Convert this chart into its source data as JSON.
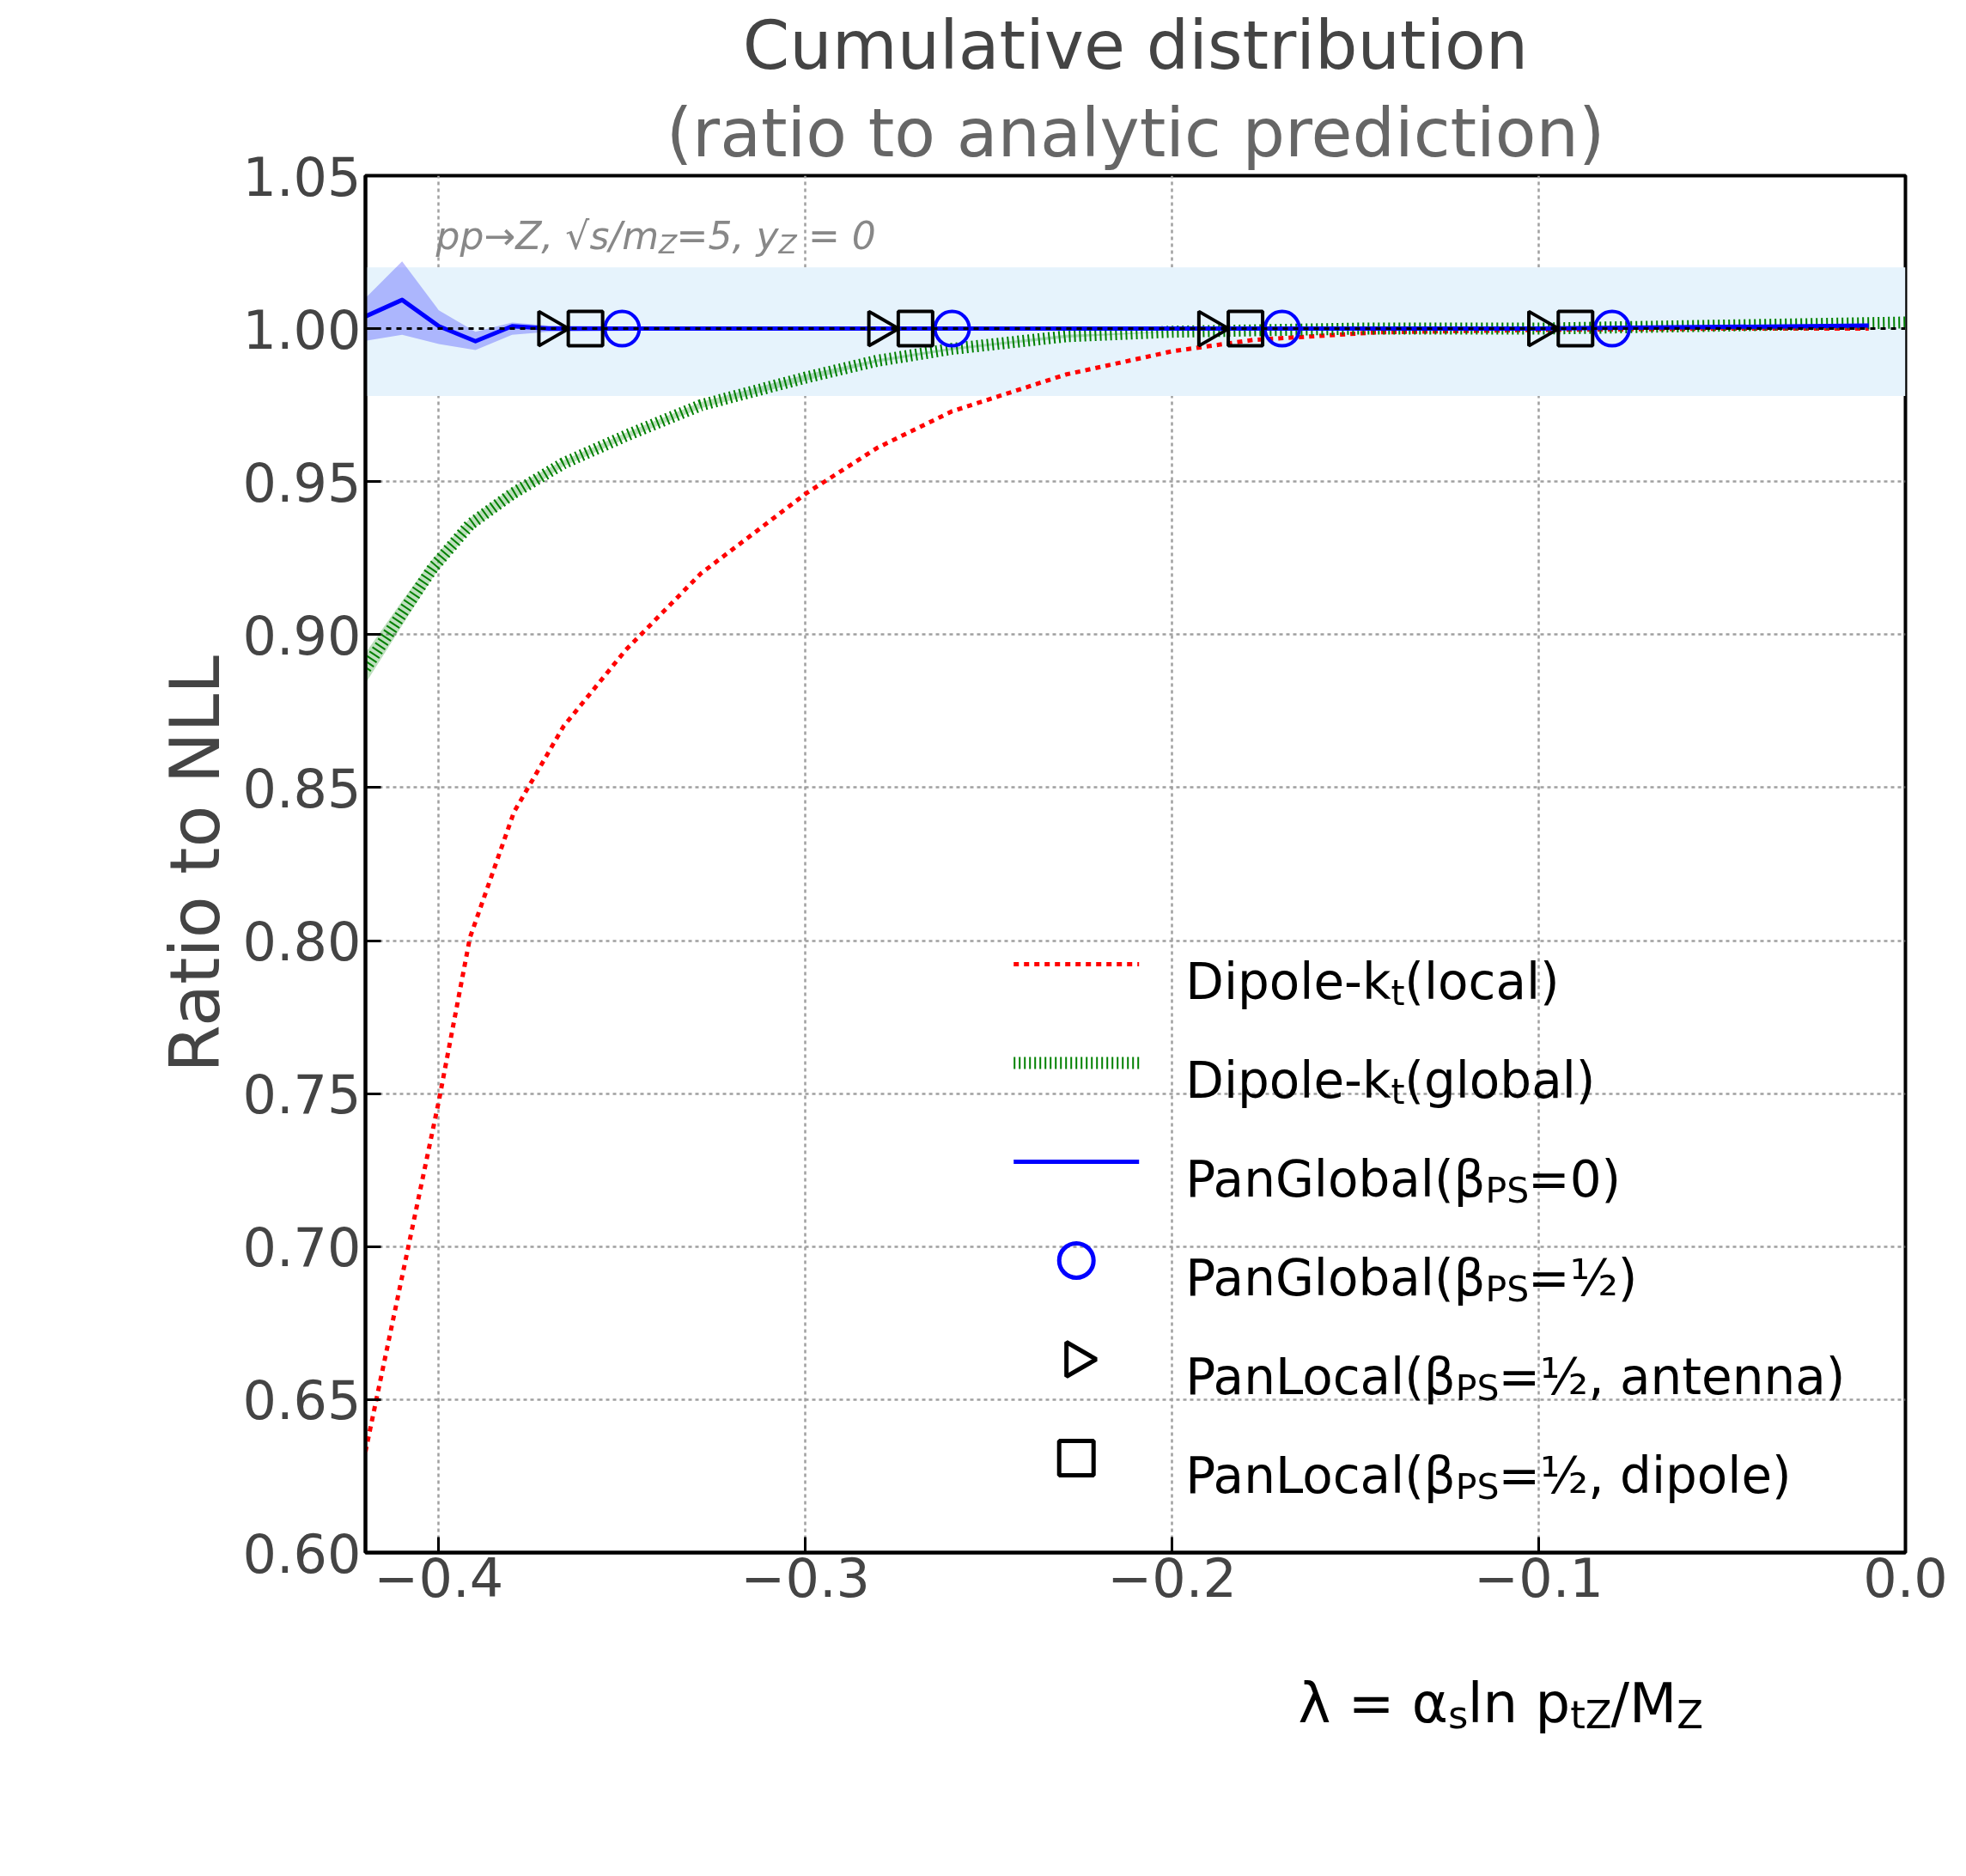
{
  "chart_data": {
    "type": "line",
    "title": "Cumulative distribution",
    "subtitle": "(ratio to analytic prediction)",
    "xlabel": "λ = α$_{s}$ln p$_{tZ}$/M$_{Z}$",
    "ylabel": "Ratio to NLL",
    "xlim": [
      -0.42,
      0.0
    ],
    "ylim": [
      0.6,
      1.05
    ],
    "xticks": [
      {
        "value": -0.4,
        "label": "−0.4"
      },
      {
        "value": -0.3,
        "label": "−0.3"
      },
      {
        "value": -0.2,
        "label": "−0.2"
      },
      {
        "value": -0.1,
        "label": "−0.1"
      },
      {
        "value": 0.0,
        "label": "0.0"
      }
    ],
    "yticks": [
      {
        "value": 0.6,
        "label": "0.60"
      },
      {
        "value": 0.65,
        "label": "0.65"
      },
      {
        "value": 0.7,
        "label": "0.70"
      },
      {
        "value": 0.75,
        "label": "0.75"
      },
      {
        "value": 0.8,
        "label": "0.80"
      },
      {
        "value": 0.85,
        "label": "0.85"
      },
      {
        "value": 0.9,
        "label": "0.90"
      },
      {
        "value": 0.95,
        "label": "0.95"
      },
      {
        "value": 1.0,
        "label": "1.00"
      },
      {
        "value": 1.05,
        "label": "1.05"
      }
    ],
    "grid": true,
    "legend": "bottom right",
    "annotations": [
      "pp→Z, √s/m$_{Z}$=5, y$_{Z}$ = 0"
    ],
    "ref_lines": [
      {
        "axis": "y",
        "value": 1.0,
        "label": null,
        "color": "#000000",
        "line_style": "dashed"
      }
    ],
    "bands": [
      {
        "axis": "y",
        "from": 0.978,
        "to": 1.02,
        "label": null,
        "color": "#e6f3fc"
      }
    ],
    "series": [
      {
        "name": "Dipole-k$_{t}$(local)",
        "color": "#ff0000",
        "line_style": "dashed",
        "x": [
          -0.42,
          -0.4,
          -0.3915,
          -0.3795,
          -0.366,
          -0.349,
          -0.3285,
          -0.3,
          -0.2805,
          -0.26,
          -0.229,
          -0.2,
          -0.178,
          -0.144,
          -0.1,
          -0.05,
          -0.01
        ],
        "values": [
          0.633,
          0.7475,
          0.801,
          0.842,
          0.87,
          0.895,
          0.92,
          0.946,
          0.961,
          0.973,
          0.985,
          0.9926,
          0.9963,
          0.9988,
          0.9996,
          1.0,
          1.0
        ]
      },
      {
        "name": "Dipole-k$_{t}$(global)",
        "color": "#008000",
        "line_style": "dotted",
        "x": [
          -0.42,
          -0.41,
          -0.4015,
          -0.3915,
          -0.38,
          -0.366,
          -0.349,
          -0.3285,
          -0.3,
          -0.2805,
          -0.26,
          -0.229,
          -0.2,
          -0.15,
          -0.1,
          -0.05,
          0.0
        ],
        "values": [
          0.889,
          0.907,
          0.922,
          0.936,
          0.946,
          0.956,
          0.965,
          0.975,
          0.984,
          0.9895,
          0.9934,
          0.9975,
          0.999,
          1.0,
          1.0,
          1.001,
          1.002
        ],
        "lower": [
          0.884,
          0.903,
          0.919,
          0.934,
          0.944,
          0.955,
          0.964,
          0.974,
          0.983,
          0.989,
          0.993,
          0.997,
          0.999,
          1.0,
          1.0,
          1.001,
          1.002
        ],
        "upper": [
          0.894,
          0.911,
          0.925,
          0.938,
          0.948,
          0.957,
          0.966,
          0.976,
          0.985,
          0.99,
          0.9938,
          0.998,
          0.999,
          1.0,
          1.0,
          1.001,
          1.002
        ]
      },
      {
        "name": "PanGlobal(β$_{PS}$=0)",
        "color": "#0000ff",
        "line_style": "solid",
        "x": [
          -0.42,
          -0.41,
          -0.4,
          -0.39,
          -0.38,
          -0.37,
          -0.3,
          -0.2,
          -0.1,
          -0.01
        ],
        "values": [
          1.004,
          1.0094,
          1.0008,
          0.9959,
          1.0008,
          1.0,
          1.0,
          1.0,
          1.0,
          1.001
        ],
        "lower": [
          0.996,
          0.998,
          0.995,
          0.993,
          0.998,
          0.999,
          1.0,
          1.0,
          1.0,
          1.001
        ],
        "upper": [
          1.01,
          1.022,
          1.006,
          0.999,
          1.002,
          1.001,
          1.0,
          1.0,
          1.0,
          1.001
        ]
      },
      {
        "name": "PanGlobal(β$_{PS}$=½)",
        "color": "#0000ff",
        "type": "scatter",
        "marker": "circle",
        "x": [
          -0.35,
          -0.26,
          -0.17,
          -0.08
        ],
        "values": [
          1.0,
          1.0,
          1.0,
          1.0
        ]
      },
      {
        "name": "PanLocal(β$_{PS}$=½, antenna)",
        "color": "#000000",
        "type": "scatter",
        "marker": "triangle",
        "x": [
          -0.37,
          -0.28,
          -0.19,
          -0.1
        ],
        "values": [
          1.0,
          1.0,
          1.0,
          1.0
        ]
      },
      {
        "name": "PanLocal(β$_{PS}$=½, dipole)",
        "color": "#000000",
        "type": "scatter",
        "marker": "square",
        "x": [
          -0.36,
          -0.27,
          -0.18,
          -0.09
        ],
        "values": [
          1.0,
          1.0,
          1.0,
          1.0
        ]
      }
    ]
  }
}
